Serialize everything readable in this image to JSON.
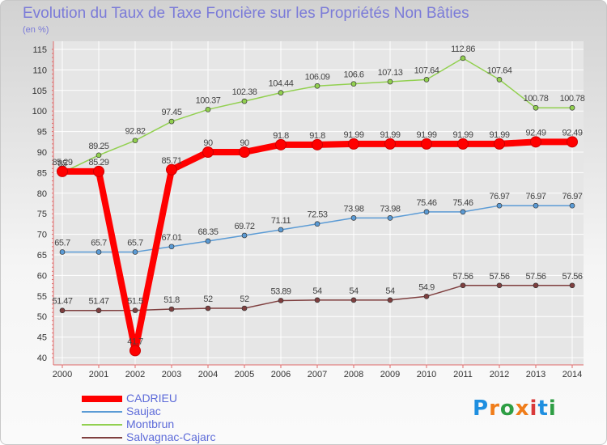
{
  "header": {
    "title": "Evolution du Taux de Taxe Foncière sur les Propriétés Non Bâties",
    "subtitle": "(en %)"
  },
  "logo": {
    "text": "Proxiti",
    "colors": [
      "#1f8fe0",
      "#f07d1a",
      "#2e9e44",
      "#f07d1a",
      "#d93a3a",
      "#1f8fe0",
      "#2e9e44"
    ]
  },
  "colors": {
    "axis": "#e06b6b",
    "grid": "#ffffff",
    "tick_label": "#333333",
    "title": "#7b7bd8",
    "legend_text": "#5d6bd9"
  },
  "chart_data": {
    "type": "line",
    "x": [
      "2000",
      "2001",
      "2002",
      "2003",
      "2004",
      "2005",
      "2006",
      "2007",
      "2008",
      "2009",
      "2010",
      "2011",
      "2012",
      "2013",
      "2014"
    ],
    "ylim": [
      40,
      115
    ],
    "yticks": [
      40,
      45,
      50,
      55,
      60,
      65,
      70,
      75,
      80,
      85,
      90,
      95,
      100,
      105,
      110,
      115
    ],
    "grid": true,
    "legend_position": "bottom-left",
    "series": [
      {
        "name": "CADRIEU",
        "color": "#ff0000",
        "width": 8,
        "values": [
          85.29,
          85.29,
          41.7,
          85.71,
          90,
          90,
          91.8,
          91.8,
          91.99,
          91.99,
          91.99,
          91.99,
          91.99,
          92.49,
          92.49
        ],
        "labels": [
          "85.29",
          "85.29",
          "41.7",
          "85.71",
          "90",
          "90",
          "91.8",
          "91.8",
          "91.99",
          "91.99",
          "91.99",
          "91.99",
          "91.99",
          "92.49",
          "92.49"
        ]
      },
      {
        "name": "Saujac",
        "color": "#5b9bd5",
        "width": 1.5,
        "values": [
          65.7,
          65.7,
          65.7,
          67.01,
          68.35,
          69.72,
          71.11,
          72.53,
          73.98,
          73.98,
          75.46,
          75.46,
          76.97,
          76.97,
          76.97
        ],
        "labels": [
          "65.7",
          "65.7",
          "65.7",
          "67.01",
          "68.35",
          "69.72",
          "71.11",
          "72.53",
          "73.98",
          "73.98",
          "75.46",
          "75.46",
          "76.97",
          "76.97",
          "76.97"
        ]
      },
      {
        "name": "Montbrun",
        "color": "#92d050",
        "width": 1.5,
        "values": [
          85,
          89.25,
          92.82,
          97.45,
          100.37,
          102.38,
          104.44,
          106.09,
          106.6,
          107.13,
          107.64,
          112.86,
          107.64,
          100.78,
          100.78
        ],
        "labels": [
          "85",
          "89.25",
          "92.82",
          "97.45",
          "100.37",
          "102.38",
          "104.44",
          "106.09",
          "106.6",
          "107.13",
          "107.64",
          "112.86",
          "107.64",
          "100.78",
          "100.78"
        ]
      },
      {
        "name": "Salvagnac-Cajarc",
        "color": "#7f3f3f",
        "width": 1.5,
        "values": [
          51.47,
          51.47,
          51.5,
          51.8,
          52,
          52,
          53.89,
          54,
          54,
          54,
          54.9,
          57.56,
          57.56,
          57.56,
          57.56
        ],
        "labels": [
          "51.47",
          "51.47",
          "51.5",
          "51.8",
          "52",
          "52",
          "53.89",
          "54",
          "54",
          "54",
          "54.9",
          "57.56",
          "57.56",
          "57.56",
          "57.56"
        ]
      }
    ]
  }
}
